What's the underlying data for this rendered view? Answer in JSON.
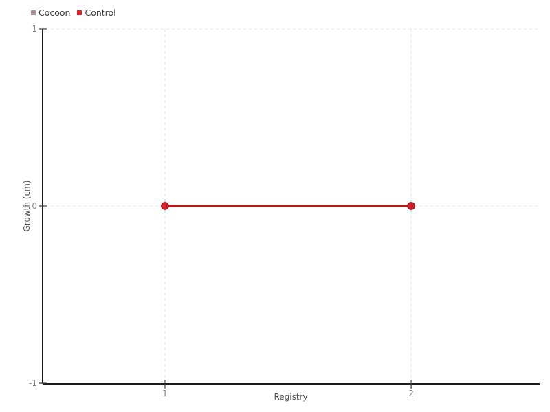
{
  "chart_data": {
    "type": "line",
    "x": [
      1,
      2
    ],
    "series": [
      {
        "name": "Cocoon",
        "color": "#b08f98",
        "values": [
          0,
          0
        ]
      },
      {
        "name": "Control",
        "color": "#e01f26",
        "values": [
          0,
          0
        ]
      }
    ],
    "title": "",
    "xlabel": "Registry",
    "ylabel": "Growth (cm)",
    "xlim": [
      0.503,
      2.522
    ],
    "ylim": [
      -1,
      1
    ],
    "xticks": [
      1,
      2
    ],
    "yticks": [
      1,
      0,
      -1
    ],
    "grid": "dashed",
    "legend_position": "top-left",
    "colors": {
      "line_outer": "#dd2129",
      "line_core": "#8e2028",
      "marker_fill": "#d41f28",
      "marker_stroke": "#871820",
      "axis": "#1c1c1c",
      "tick_mark": "#3a3a3a",
      "grid": "#e3e3e3",
      "tick_label": "#828282",
      "axis_label": "#4f4f4f",
      "legend_text": "#3d3d3d",
      "background": "#ffffff"
    }
  }
}
